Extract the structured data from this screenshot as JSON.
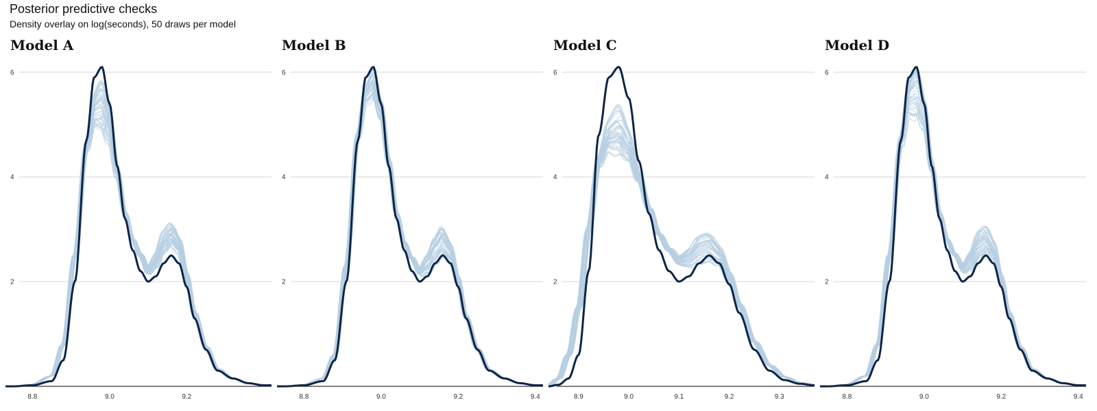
{
  "title": "Posterior predictive checks",
  "subtitle": "Density overlay on log(seconds), 50 draws per model",
  "chart_data": [
    {
      "type": "line",
      "facet": "Model A",
      "xlim": [
        8.73,
        9.42
      ],
      "ylim": [
        0,
        6.2
      ],
      "x_ticks": [
        8.8,
        9.0,
        9.2
      ],
      "y_ticks": [
        2,
        4,
        6
      ],
      "draws": 50,
      "grid": "horizontal",
      "observed": {
        "x": [
          8.75,
          8.8,
          8.85,
          8.88,
          8.91,
          8.94,
          8.96,
          8.98,
          9.0,
          9.02,
          9.04,
          9.06,
          9.08,
          9.1,
          9.12,
          9.14,
          9.16,
          9.18,
          9.2,
          9.22,
          9.25,
          9.28,
          9.32,
          9.36,
          9.4
        ],
        "y": [
          0.0,
          0.02,
          0.1,
          0.5,
          2.0,
          4.7,
          5.9,
          6.1,
          5.4,
          4.2,
          3.2,
          2.6,
          2.2,
          2.0,
          2.1,
          2.35,
          2.5,
          2.35,
          1.9,
          1.3,
          0.7,
          0.3,
          0.15,
          0.06,
          0.02
        ]
      },
      "replicate_band": {
        "x": [
          8.75,
          8.8,
          8.85,
          8.88,
          8.91,
          8.94,
          8.96,
          8.98,
          9.0,
          9.02,
          9.04,
          9.06,
          9.08,
          9.1,
          9.12,
          9.14,
          9.16,
          9.18,
          9.2,
          9.22,
          9.25,
          9.28,
          9.32,
          9.36,
          9.4
        ],
        "y": [
          0.0,
          0.04,
          0.2,
          0.8,
          2.5,
          4.6,
          5.3,
          5.4,
          5.0,
          4.1,
          3.3,
          2.8,
          2.5,
          2.2,
          2.4,
          2.75,
          2.9,
          2.7,
          2.1,
          1.4,
          0.75,
          0.33,
          0.15,
          0.06,
          0.02
        ],
        "peak_spread": 0.5,
        "bump_spread": 0.25
      }
    },
    {
      "type": "line",
      "facet": "Model B",
      "xlim": [
        8.73,
        9.42
      ],
      "ylim": [
        0,
        6.2
      ],
      "x_ticks": [
        8.8,
        9.0,
        9.2,
        9.4
      ],
      "y_ticks": [
        2,
        4,
        6
      ],
      "draws": 50,
      "grid": "horizontal",
      "observed": {
        "x": [
          8.75,
          8.8,
          8.85,
          8.88,
          8.91,
          8.94,
          8.96,
          8.98,
          9.0,
          9.02,
          9.04,
          9.06,
          9.08,
          9.1,
          9.12,
          9.14,
          9.16,
          9.18,
          9.2,
          9.22,
          9.25,
          9.28,
          9.32,
          9.36,
          9.4
        ],
        "y": [
          0.0,
          0.02,
          0.1,
          0.5,
          2.0,
          4.7,
          5.9,
          6.1,
          5.4,
          4.2,
          3.2,
          2.6,
          2.2,
          2.0,
          2.1,
          2.35,
          2.5,
          2.35,
          1.9,
          1.3,
          0.7,
          0.3,
          0.15,
          0.06,
          0.02
        ]
      },
      "replicate_band": {
        "x": [
          8.75,
          8.8,
          8.85,
          8.88,
          8.91,
          8.94,
          8.96,
          8.98,
          9.0,
          9.02,
          9.04,
          9.06,
          9.08,
          9.1,
          9.12,
          9.14,
          9.16,
          9.18,
          9.2,
          9.22,
          9.25,
          9.28,
          9.32,
          9.36,
          9.4
        ],
        "y": [
          0.0,
          0.03,
          0.15,
          0.6,
          2.3,
          4.8,
          5.6,
          5.8,
          5.3,
          4.3,
          3.3,
          2.75,
          2.45,
          2.2,
          2.35,
          2.6,
          2.8,
          2.6,
          2.05,
          1.35,
          0.72,
          0.32,
          0.15,
          0.06,
          0.02
        ],
        "peak_spread": 0.3,
        "bump_spread": 0.3
      }
    },
    {
      "type": "line",
      "facet": "Model C",
      "xlim": [
        8.84,
        9.37
      ],
      "ylim": [
        0,
        6.2
      ],
      "x_ticks": [
        8.9,
        9.0,
        9.1,
        9.2,
        9.3
      ],
      "y_ticks": [
        2,
        4,
        6
      ],
      "draws": 50,
      "grid": "horizontal",
      "observed": {
        "x": [
          8.84,
          8.86,
          8.88,
          8.9,
          8.92,
          8.94,
          8.96,
          8.98,
          9.0,
          9.02,
          9.04,
          9.06,
          9.08,
          9.1,
          9.12,
          9.14,
          9.16,
          9.18,
          9.2,
          9.22,
          9.25,
          9.28,
          9.31,
          9.34,
          9.37
        ],
        "y": [
          0.0,
          0.03,
          0.15,
          0.6,
          2.2,
          4.8,
          5.9,
          6.1,
          5.5,
          4.3,
          3.3,
          2.6,
          2.2,
          2.0,
          2.1,
          2.35,
          2.5,
          2.35,
          1.95,
          1.4,
          0.7,
          0.3,
          0.12,
          0.05,
          0.02
        ]
      },
      "replicate_band": {
        "x": [
          8.84,
          8.86,
          8.88,
          8.9,
          8.92,
          8.94,
          8.96,
          8.98,
          9.0,
          9.02,
          9.04,
          9.06,
          9.08,
          9.1,
          9.12,
          9.14,
          9.16,
          9.18,
          9.2,
          9.22,
          9.25,
          9.28,
          9.31,
          9.34,
          9.37
        ],
        "y": [
          0.02,
          0.15,
          0.6,
          1.5,
          3.0,
          4.3,
          4.8,
          4.9,
          4.6,
          4.0,
          3.4,
          2.9,
          2.6,
          2.4,
          2.45,
          2.6,
          2.65,
          2.5,
          2.1,
          1.55,
          0.85,
          0.4,
          0.18,
          0.07,
          0.03
        ],
        "peak_spread": 0.5,
        "bump_spread": 0.3
      }
    },
    {
      "type": "line",
      "facet": "Model D",
      "xlim": [
        8.73,
        9.42
      ],
      "ylim": [
        0,
        6.2
      ],
      "x_ticks": [
        8.8,
        9.0,
        9.2,
        9.4
      ],
      "y_ticks": [
        2,
        4,
        6
      ],
      "draws": 50,
      "grid": "horizontal",
      "observed": {
        "x": [
          8.75,
          8.8,
          8.85,
          8.88,
          8.91,
          8.94,
          8.96,
          8.98,
          9.0,
          9.02,
          9.04,
          9.06,
          9.08,
          9.1,
          9.12,
          9.14,
          9.16,
          9.18,
          9.2,
          9.22,
          9.25,
          9.28,
          9.32,
          9.36,
          9.4
        ],
        "y": [
          0.0,
          0.02,
          0.1,
          0.5,
          2.0,
          4.7,
          5.9,
          6.1,
          5.4,
          4.2,
          3.2,
          2.6,
          2.2,
          2.0,
          2.1,
          2.35,
          2.5,
          2.35,
          1.9,
          1.3,
          0.7,
          0.3,
          0.15,
          0.06,
          0.02
        ]
      },
      "replicate_band": {
        "x": [
          8.75,
          8.8,
          8.85,
          8.88,
          8.91,
          8.94,
          8.96,
          8.98,
          9.0,
          9.02,
          9.04,
          9.06,
          9.08,
          9.1,
          9.12,
          9.14,
          9.16,
          9.18,
          9.2,
          9.22,
          9.25,
          9.28,
          9.32,
          9.36,
          9.4
        ],
        "y": [
          0.0,
          0.04,
          0.2,
          0.8,
          2.5,
          4.7,
          5.5,
          5.6,
          5.2,
          4.2,
          3.3,
          2.8,
          2.5,
          2.25,
          2.4,
          2.7,
          2.8,
          2.6,
          2.05,
          1.4,
          0.75,
          0.33,
          0.15,
          0.06,
          0.02
        ],
        "peak_spread": 0.5,
        "bump_spread": 0.3
      }
    }
  ],
  "colors": {
    "observed": "#0c2447",
    "replicates": "#b7cfe2",
    "grid": "#d6d6d6",
    "baseline": "#333333"
  }
}
